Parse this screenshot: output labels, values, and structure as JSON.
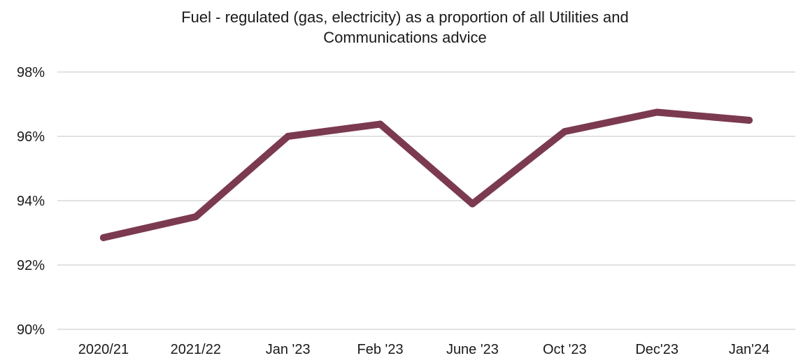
{
  "chart_data": {
    "type": "line",
    "title_lines": [
      "Fuel - regulated (gas, electricity) as a proportion of all Utilities and",
      "Communications advice"
    ],
    "categories": [
      "2020/21",
      "2021/22",
      "Jan '23",
      "Feb '23",
      "June '23",
      "Oct '23",
      "Dec'23",
      "Jan'24"
    ],
    "series": [
      {
        "values": [
          92.85,
          93.5,
          96.0,
          96.38,
          93.9,
          96.15,
          96.75,
          96.5
        ]
      }
    ],
    "ylim": [
      90,
      98
    ],
    "yticks": [
      90,
      92,
      94,
      96,
      98
    ],
    "ytick_labels": [
      "90%",
      "92%",
      "94%",
      "96%",
      "98%"
    ],
    "grid": true,
    "colors": {
      "line": "#7b3a4f",
      "grid": "#d9d9d9"
    }
  }
}
